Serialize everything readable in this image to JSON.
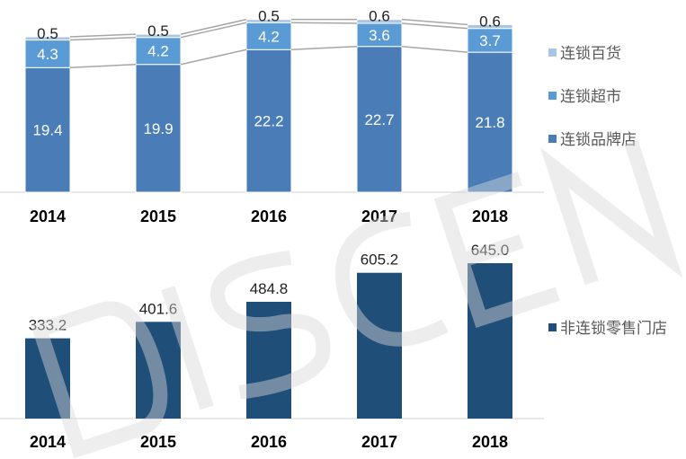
{
  "chart_data": [
    {
      "type": "bar",
      "stacked": true,
      "categories": [
        "2014",
        "2015",
        "2016",
        "2017",
        "2018"
      ],
      "series": [
        {
          "name": "连锁品牌店",
          "values": [
            19.4,
            19.9,
            22.2,
            22.7,
            21.8
          ],
          "color": "#4a7db8"
        },
        {
          "name": "连锁超市",
          "values": [
            4.3,
            4.2,
            4.2,
            3.6,
            3.7
          ],
          "color": "#5b9bd5"
        },
        {
          "name": "连锁百货",
          "values": [
            0.5,
            0.5,
            0.5,
            0.6,
            0.6
          ],
          "color": "#a9c4e4"
        }
      ],
      "legend_position": "right",
      "connector_lines": true,
      "grid": false
    },
    {
      "type": "bar",
      "categories": [
        "2014",
        "2015",
        "2016",
        "2017",
        "2018"
      ],
      "series": [
        {
          "name": "非连锁零售门店",
          "values": [
            333.2,
            401.6,
            484.8,
            605.2,
            645.0
          ],
          "color": "#1f4e79"
        }
      ],
      "legend_position": "right",
      "grid": false
    }
  ],
  "watermark_text": "DISCEN"
}
